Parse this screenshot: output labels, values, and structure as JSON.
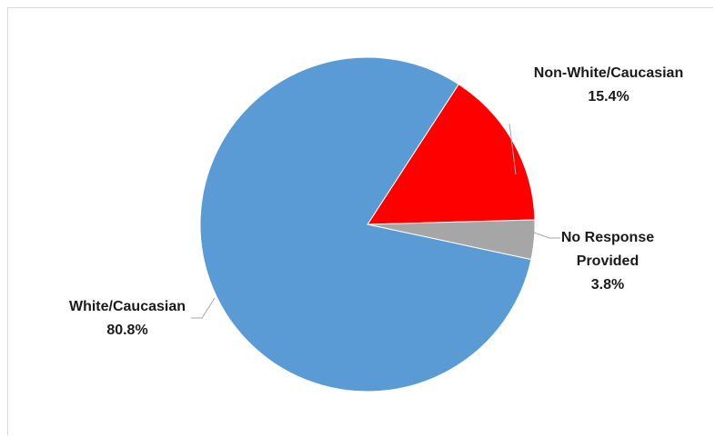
{
  "chart_data": {
    "type": "pie",
    "title": "",
    "legend": "none",
    "slices": [
      {
        "name": "Non-White/Caucasian",
        "value": 15.4,
        "label_lines": [
          "Non-White/Caucasian",
          "15.4%"
        ],
        "color": "#ff0000"
      },
      {
        "name": "No Response Provided",
        "value": 3.8,
        "label_lines": [
          "No Response",
          "Provided",
          "3.8%"
        ],
        "color": "#a6a6a6"
      },
      {
        "name": "White/Caucasian",
        "value": 80.8,
        "label_lines": [
          "White/Caucasian",
          "80.8%"
        ],
        "color": "#5b9bd5"
      }
    ]
  }
}
